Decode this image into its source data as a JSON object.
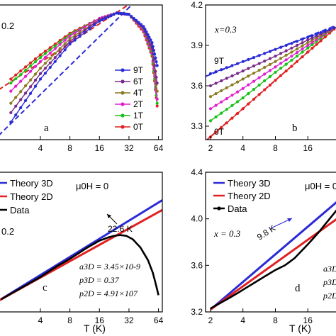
{
  "chart_data": [
    {
      "panel": "a",
      "type": "scatter",
      "x_scale": "log2",
      "xlim": [
        1.5,
        70
      ],
      "ylim": [
        0.0,
        1.0
      ],
      "x_ticks": [
        "4",
        "8",
        "16",
        "32",
        "64"
      ],
      "y_ticks": [],
      "label_fragment": "0.2",
      "panel_letter": "a",
      "legend_position": "center-right",
      "series": [
        {
          "name": "9T",
          "color": "#2b2bd6",
          "marker": "pentagon",
          "points": [
            [
              2,
              0.13
            ],
            [
              4,
              0.45
            ],
            [
              8,
              0.71
            ],
            [
              16,
              0.88
            ],
            [
              24,
              0.94
            ],
            [
              32,
              0.93
            ],
            [
              45,
              0.84
            ],
            [
              55,
              0.72
            ],
            [
              62,
              0.55
            ]
          ]
        },
        {
          "name": "6T",
          "color": "#7a2a8a",
          "marker": "circle",
          "points": [
            [
              2,
              0.2
            ],
            [
              4,
              0.49
            ],
            [
              8,
              0.73
            ],
            [
              16,
              0.89
            ],
            [
              24,
              0.94
            ],
            [
              32,
              0.93
            ],
            [
              45,
              0.83
            ],
            [
              55,
              0.68
            ],
            [
              62,
              0.42
            ]
          ]
        },
        {
          "name": "4T",
          "color": "#8a7a20",
          "marker": "circle",
          "points": [
            [
              2,
              0.27
            ],
            [
              4,
              0.53
            ],
            [
              8,
              0.75
            ],
            [
              16,
              0.89
            ],
            [
              24,
              0.94
            ],
            [
              32,
              0.93
            ],
            [
              45,
              0.82
            ],
            [
              55,
              0.66
            ],
            [
              62,
              0.36
            ]
          ]
        },
        {
          "name": "2T",
          "color": "#e020d0",
          "marker": "circle",
          "points": [
            [
              2,
              0.36
            ],
            [
              4,
              0.58
            ],
            [
              8,
              0.77
            ],
            [
              16,
              0.9
            ],
            [
              24,
              0.94
            ],
            [
              32,
              0.93
            ],
            [
              45,
              0.81
            ],
            [
              55,
              0.64
            ],
            [
              62,
              0.3
            ]
          ]
        },
        {
          "name": "1T",
          "color": "#18c018",
          "marker": "circle",
          "points": [
            [
              2,
              0.42
            ],
            [
              4,
              0.61
            ],
            [
              8,
              0.78
            ],
            [
              16,
              0.9
            ],
            [
              24,
              0.94
            ],
            [
              32,
              0.93
            ],
            [
              45,
              0.81
            ],
            [
              55,
              0.63
            ],
            [
              62,
              0.27
            ]
          ]
        },
        {
          "name": "0T",
          "color": "#e02020",
          "marker": "circle",
          "points": [
            [
              2,
              0.45
            ],
            [
              4,
              0.63
            ],
            [
              8,
              0.79
            ],
            [
              16,
              0.9
            ],
            [
              24,
              0.94
            ],
            [
              32,
              0.93
            ],
            [
              45,
              0.8
            ],
            [
              55,
              0.62
            ],
            [
              62,
              0.25
            ]
          ]
        }
      ],
      "fit_lines": [
        {
          "color": "#2b2bd6",
          "dash": true,
          "from": [
            1.5,
            0.03
          ],
          "to": [
            40,
            1.05
          ]
        },
        {
          "color": "#e02020",
          "dash": true,
          "from": [
            1.5,
            0.37
          ],
          "to": [
            40,
            1.05
          ]
        }
      ]
    },
    {
      "panel": "b",
      "type": "scatter",
      "x_scale": "log2",
      "xlim": [
        1.8,
        32
      ],
      "ylim": [
        3.2,
        4.2
      ],
      "x_ticks": [
        "2",
        "4",
        "8",
        "16"
      ],
      "y_ticks": [
        "3.3",
        "3.6",
        "3.9",
        "4.2"
      ],
      "label": "x=0.3",
      "panel_letter": "b",
      "curve_labels": [
        "9T",
        "0T"
      ],
      "series": [
        {
          "name": "9T",
          "color": "#2b2bd6",
          "points": [
            [
              2,
              3.69
            ],
            [
              4,
              3.78
            ],
            [
              8,
              3.87
            ],
            [
              16,
              3.96
            ],
            [
              28,
              4.03
            ]
          ]
        },
        {
          "name": "",
          "color": "#7a2a8a",
          "points": [
            [
              2,
              3.6
            ],
            [
              4,
              3.71
            ],
            [
              8,
              3.82
            ],
            [
              16,
              3.94
            ],
            [
              28,
              4.03
            ]
          ]
        },
        {
          "name": "",
          "color": "#8a7a20",
          "points": [
            [
              2,
              3.52
            ],
            [
              4,
              3.65
            ],
            [
              8,
              3.78
            ],
            [
              16,
              3.92
            ],
            [
              28,
              4.03
            ]
          ]
        },
        {
          "name": "",
          "color": "#e020d0",
          "points": [
            [
              2,
              3.43
            ],
            [
              4,
              3.58
            ],
            [
              8,
              3.74
            ],
            [
              16,
              3.9
            ],
            [
              28,
              4.03
            ]
          ]
        },
        {
          "name": "",
          "color": "#18c018",
          "points": [
            [
              2,
              3.34
            ],
            [
              4,
              3.51
            ],
            [
              8,
              3.7
            ],
            [
              16,
              3.88
            ],
            [
              28,
              4.03
            ]
          ]
        },
        {
          "name": "0T",
          "color": "#e02020",
          "points": [
            [
              2,
              3.22
            ],
            [
              4,
              3.43
            ],
            [
              8,
              3.64
            ],
            [
              16,
              3.85
            ],
            [
              28,
              4.02
            ]
          ]
        }
      ],
      "fit_lines": [
        {
          "color": "#2b2bd6",
          "dash": true,
          "from": [
            1.8,
            3.67
          ],
          "to": [
            32,
            4.06
          ]
        },
        {
          "color": "#e02020",
          "dash": true,
          "from": [
            1.8,
            3.19
          ],
          "to": [
            32,
            4.06
          ]
        }
      ]
    },
    {
      "panel": "c",
      "type": "line",
      "x_scale": "log2",
      "xlim": [
        1.5,
        70
      ],
      "ylim": [
        0.0,
        1.0
      ],
      "x_ticks": [
        "4",
        "8",
        "16",
        "32",
        "64"
      ],
      "y_ticks": [],
      "xlabel": "T (K)",
      "legend": [
        "Theory 3D",
        "Theory 2D",
        "Data"
      ],
      "legend_position": "top-left",
      "field_label": "μ0H = 0",
      "label_fragment": "0.2",
      "annotation": "22.6 K",
      "params": [
        "a3D = 3.45×10-9",
        "p3D = 0.37",
        "p2D = 4.91×107"
      ],
      "panel_letter": "c",
      "theory_3d": {
        "from": [
          1.5,
          0.08
        ],
        "to": [
          70,
          0.8
        ]
      },
      "theory_2d": {
        "from": [
          1.5,
          0.08
        ],
        "to": [
          70,
          0.73
        ]
      },
      "data": [
        [
          1.6,
          0.09
        ],
        [
          2,
          0.13
        ],
        [
          3,
          0.2
        ],
        [
          4,
          0.25
        ],
        [
          6,
          0.33
        ],
        [
          8,
          0.38
        ],
        [
          12,
          0.46
        ],
        [
          16,
          0.51
        ],
        [
          20,
          0.535
        ],
        [
          22.6,
          0.545
        ],
        [
          26,
          0.55
        ],
        [
          30,
          0.545
        ],
        [
          35,
          0.52
        ],
        [
          42,
          0.46
        ],
        [
          50,
          0.37
        ],
        [
          56,
          0.28
        ],
        [
          60,
          0.2
        ],
        [
          64,
          0.12
        ]
      ]
    },
    {
      "panel": "d",
      "type": "line",
      "x_scale": "log2",
      "xlim": [
        1.8,
        32
      ],
      "ylim": [
        3.2,
        4.4
      ],
      "x_ticks": [
        "2",
        "4",
        "8",
        "16"
      ],
      "y_ticks": [
        "3.2",
        "3.6",
        "4.0",
        "4.4"
      ],
      "xlabel": "T (K)",
      "legend": [
        "Theory 3D",
        "Theory 2D",
        "Data"
      ],
      "legend_position": "top-left",
      "field_label": "μ0H = 0",
      "label": "x = 0.3",
      "annotation": "9.8 K",
      "params": [
        "a3D",
        "p3D",
        "p2D"
      ],
      "panel_letter": "d",
      "theory_3d": {
        "from": [
          2,
          3.22
        ],
        "to": [
          32,
          4.17
        ]
      },
      "theory_2d": {
        "from": [
          2,
          3.22
        ],
        "to": [
          32,
          4.02
        ]
      },
      "data": [
        [
          2,
          3.23
        ],
        [
          3,
          3.32
        ],
        [
          4,
          3.39
        ],
        [
          6,
          3.49
        ],
        [
          8,
          3.56
        ],
        [
          9.8,
          3.6
        ],
        [
          12,
          3.66
        ],
        [
          16,
          3.78
        ],
        [
          20,
          3.88
        ],
        [
          25,
          3.99
        ],
        [
          30,
          4.08
        ]
      ]
    }
  ]
}
